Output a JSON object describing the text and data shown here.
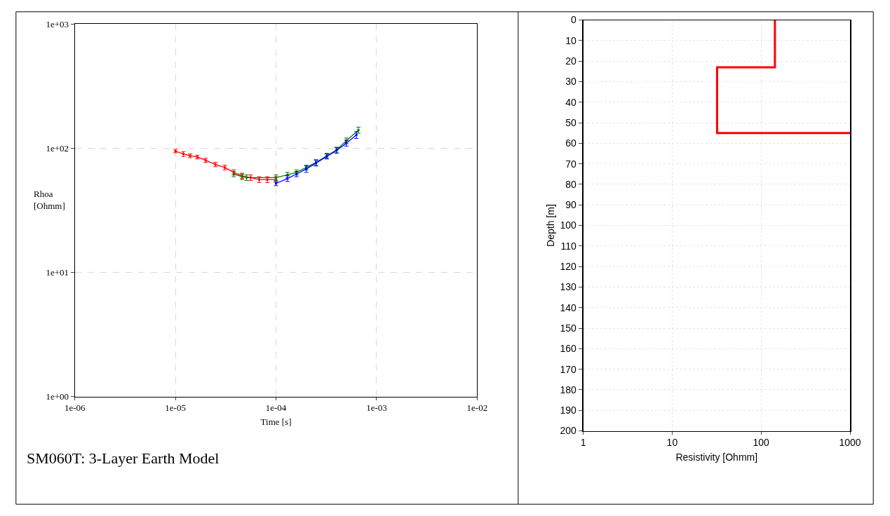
{
  "chart_data": [
    {
      "type": "line",
      "xlabel": "Time [s]",
      "ylabel": "Rhoa\n[Ohmm]",
      "log": "xy",
      "grid": true,
      "marker": "square",
      "annotations": [
        "SM060T: 3-Layer Earth Model"
      ],
      "xlim": [
        1e-06,
        0.01
      ],
      "xticks": [
        {
          "value": 1e-06,
          "label": "1e-06"
        },
        {
          "value": 1e-05,
          "label": "1e-05"
        },
        {
          "value": 0.0001,
          "label": "1e-04"
        },
        {
          "value": 0.001,
          "label": "1e-03"
        },
        {
          "value": 0.01,
          "label": "1e-02"
        }
      ],
      "ylim": [
        1,
        1000
      ],
      "yticks": [
        {
          "value": 1,
          "label": "1e+00"
        },
        {
          "value": 10,
          "label": "1e+01"
        },
        {
          "value": 100,
          "label": "1e+02"
        },
        {
          "value": 1000,
          "label": "1e+03"
        }
      ],
      "series": [
        {
          "color": "#ff0000",
          "x": [
            1e-05,
            1.2e-05,
            1.4e-05,
            1.65e-05,
            2e-05,
            2.5e-05,
            3.1e-05,
            3.8e-05,
            4.6e-05,
            5.6e-05,
            6.8e-05,
            8.2e-05,
            0.0001
          ],
          "values": [
            95,
            90,
            87,
            85,
            80,
            74,
            70,
            64,
            60,
            58,
            56,
            56,
            56
          ],
          "errors": [
            3,
            4,
            3,
            3,
            3,
            3,
            3,
            3,
            3,
            3,
            3,
            3,
            3
          ]
        },
        {
          "color": "#008000",
          "x": [
            3.8e-05,
            4.6e-05,
            5.1e-05,
            0.0001,
            0.00013,
            0.00016,
            0.0002,
            0.00025,
            0.00032,
            0.0004,
            0.0005,
            0.00066
          ],
          "values": [
            62,
            59,
            58,
            58,
            61,
            64,
            70,
            77,
            87,
            97,
            115,
            140
          ],
          "errors": [
            3,
            3,
            3,
            3,
            3,
            3,
            3,
            4,
            4,
            5,
            6,
            8
          ]
        },
        {
          "color": "#0000ff",
          "x": [
            0.0001,
            0.00013,
            0.00016,
            0.0002,
            0.00025,
            0.00032,
            0.0004,
            0.0005,
            0.00063
          ],
          "values": [
            52,
            57,
            62,
            68,
            76,
            86,
            96,
            110,
            128
          ],
          "errors": [
            2,
            3,
            3,
            4,
            4,
            4,
            5,
            6,
            8
          ]
        }
      ]
    },
    {
      "type": "step",
      "xlabel": "Resistivity [Ohmm]",
      "ylabel": "Depth [m]",
      "log": "x",
      "grid": true,
      "line_style": "solid",
      "xlim": [
        1,
        1000
      ],
      "xticks": [
        1,
        10,
        100,
        1000
      ],
      "ylim": [
        200,
        0
      ],
      "yticks": [
        0,
        10,
        20,
        30,
        40,
        50,
        60,
        70,
        80,
        90,
        100,
        110,
        120,
        130,
        140,
        150,
        160,
        170,
        180,
        190,
        200
      ],
      "series": [
        {
          "color": "#ff0000",
          "x": [
            143,
            143,
            32,
            32,
            1000
          ],
          "values": [
            0,
            23,
            23,
            55,
            55
          ]
        }
      ]
    }
  ]
}
